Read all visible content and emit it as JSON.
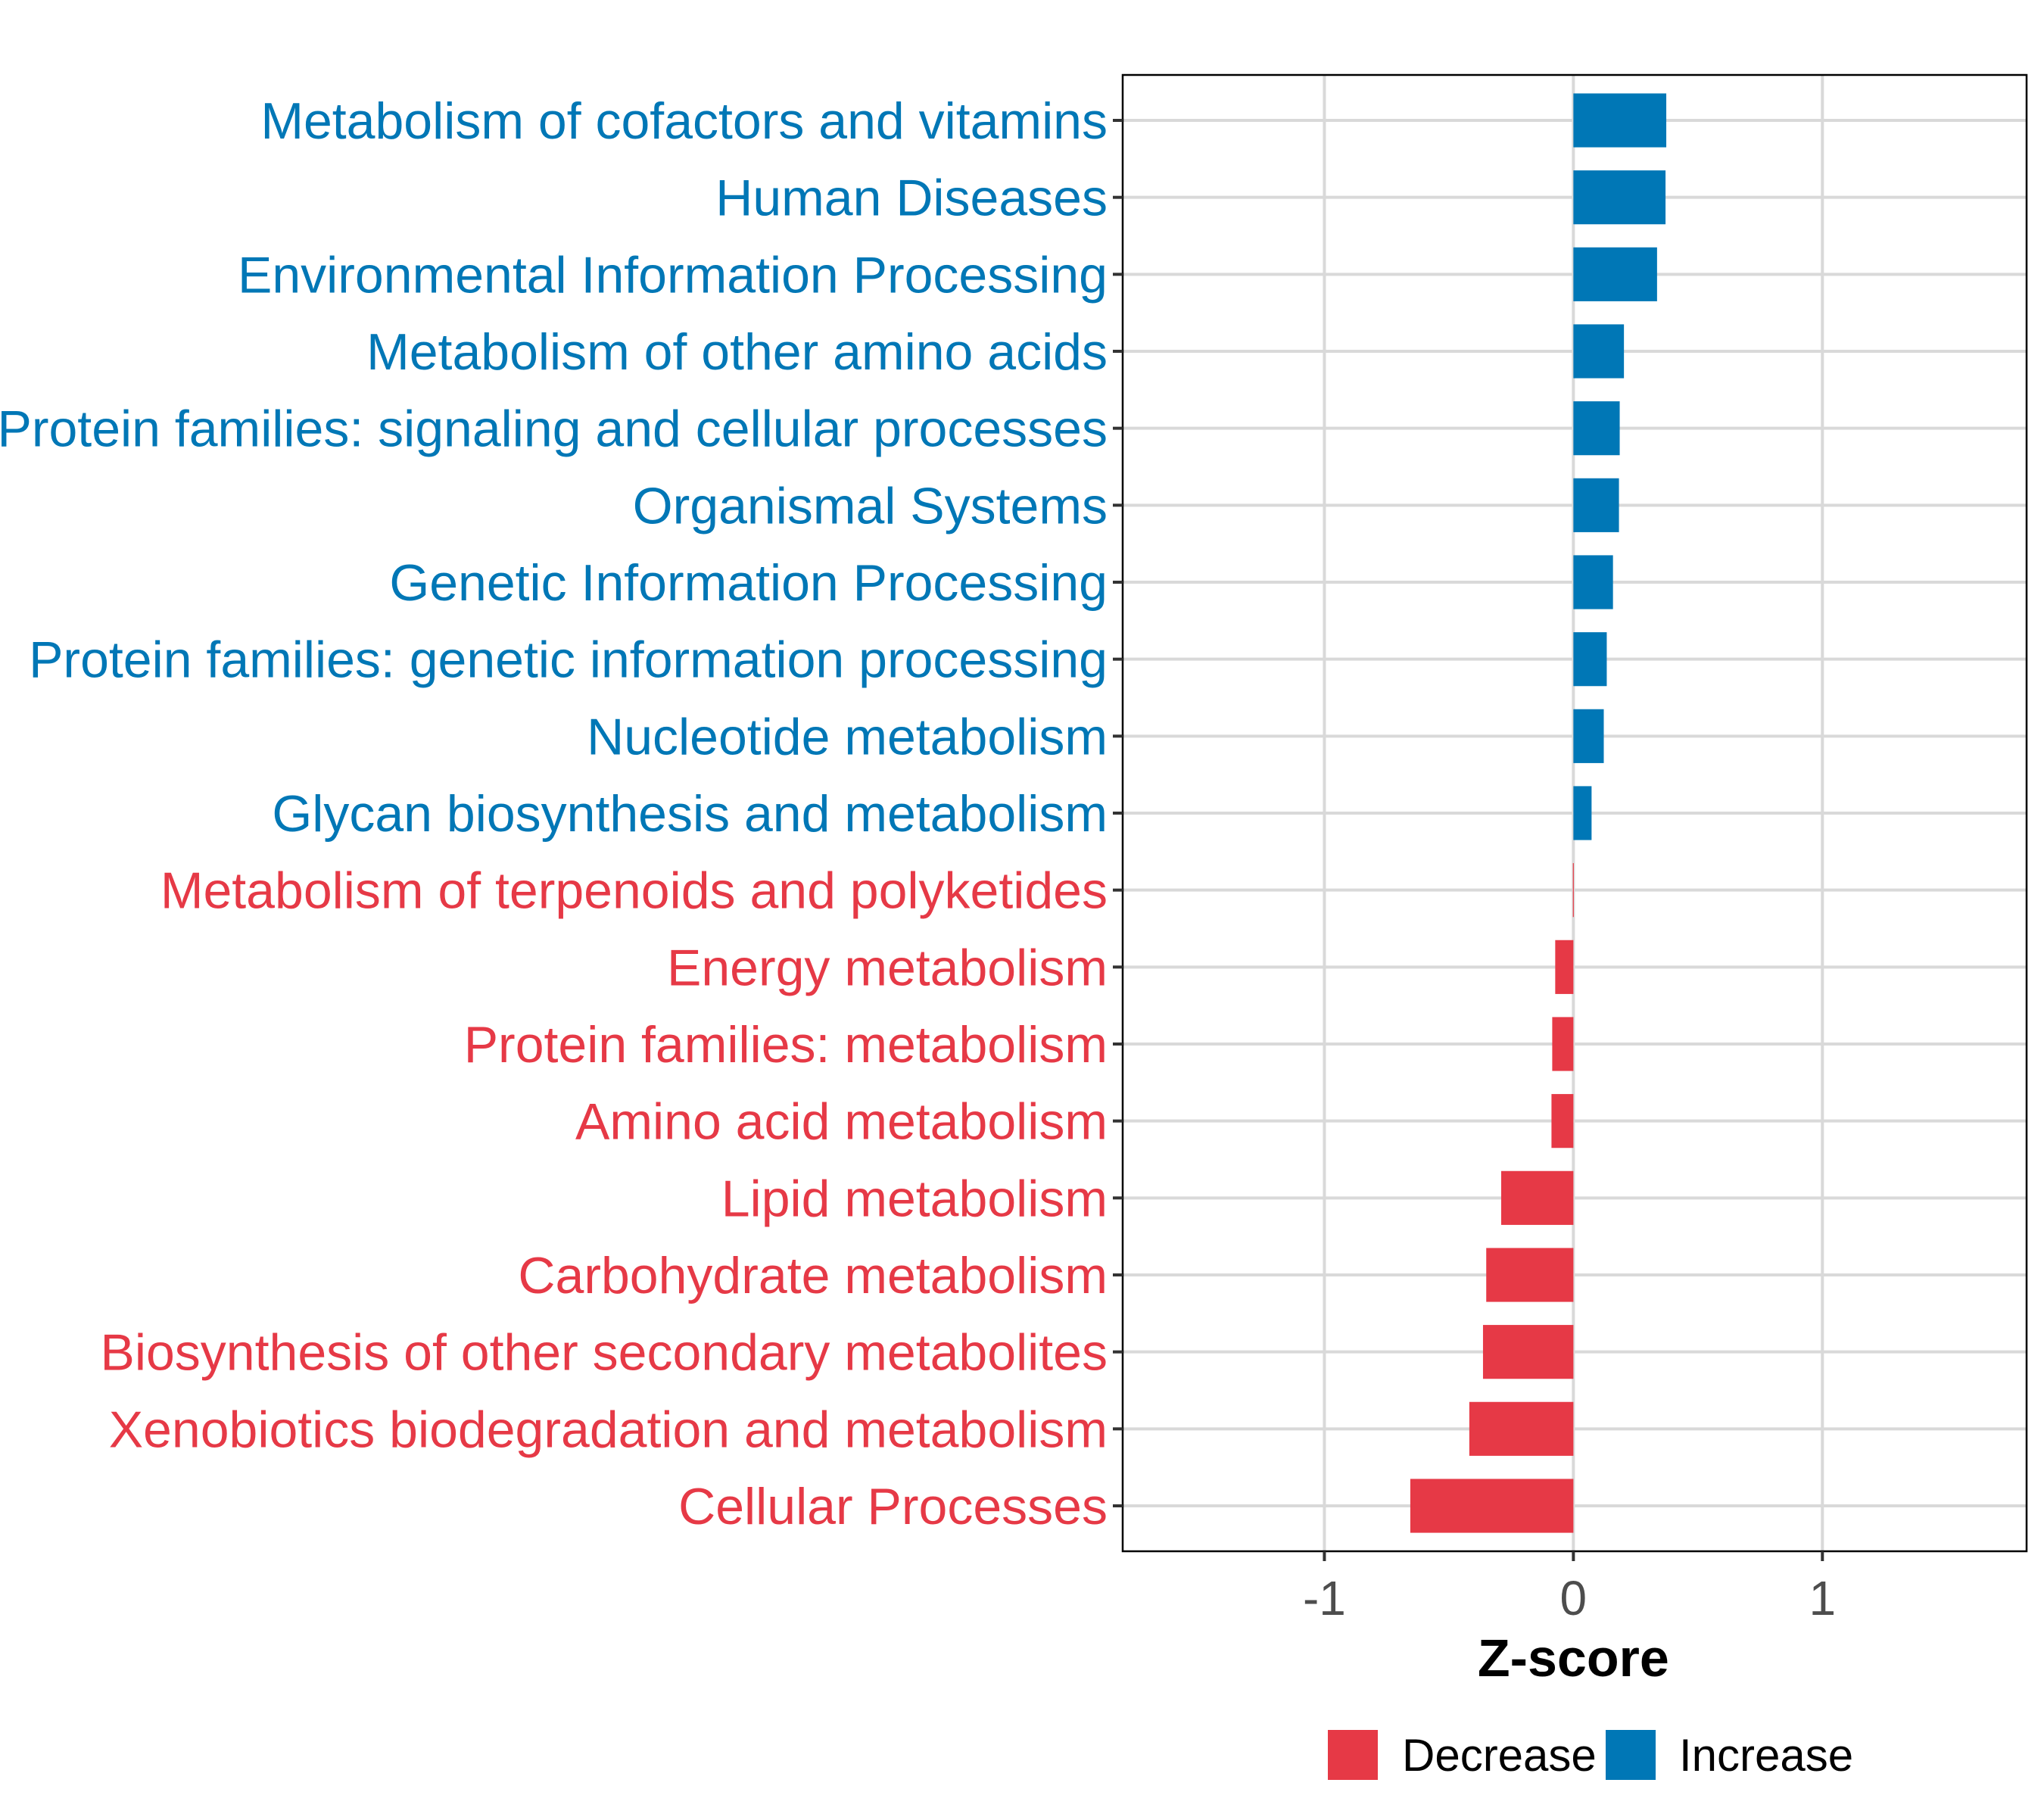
{
  "chart_data": {
    "type": "bar",
    "orientation": "horizontal",
    "title": "",
    "xlabel": "Z-score",
    "ylabel": "",
    "xlim": [
      -1.81,
      1.82
    ],
    "xticks": [
      -1,
      0,
      1
    ],
    "xtick_labels": [
      "-1",
      "0",
      "1"
    ],
    "grid": true,
    "legend_position": "bottom",
    "legend": [
      {
        "name": "Decrease",
        "color": "#E63946"
      },
      {
        "name": "Increase",
        "color": "#0077B6"
      }
    ],
    "categories": [
      "Metabolism of cofactors and vitamins",
      "Human Diseases",
      "Environmental Information Processing",
      "Metabolism of other amino acids",
      "Protein families: signaling and cellular processes",
      "Organismal Systems",
      "Genetic Information Processing",
      "Protein families: genetic information processing",
      "Nucleotide metabolism",
      "Glycan biosynthesis and metabolism",
      "Metabolism of terpenoids and polyketides",
      "Energy metabolism",
      "Protein families: metabolism",
      "Amino acid metabolism",
      "Lipid metabolism",
      "Carbohydrate metabolism",
      "Biosynthesis of other secondary metabolites",
      "Xenobiotics biodegradation and metabolism",
      "Cellular Processes"
    ],
    "values": [
      0.373,
      0.37,
      0.336,
      0.203,
      0.186,
      0.183,
      0.159,
      0.134,
      0.122,
      0.073,
      -0.002,
      -0.073,
      -0.085,
      -0.088,
      -0.29,
      -0.35,
      -0.363,
      -0.418,
      -0.655
    ],
    "groups": [
      "Increase",
      "Increase",
      "Increase",
      "Increase",
      "Increase",
      "Increase",
      "Increase",
      "Increase",
      "Increase",
      "Increase",
      "Decrease",
      "Decrease",
      "Decrease",
      "Decrease",
      "Decrease",
      "Decrease",
      "Decrease",
      "Decrease",
      "Decrease"
    ]
  },
  "colors": {
    "increase": "#0077B6",
    "decrease": "#E63946",
    "grid": "#d9d9d9",
    "panel_border": "#000000",
    "tick_text": "#4d4d4d"
  }
}
